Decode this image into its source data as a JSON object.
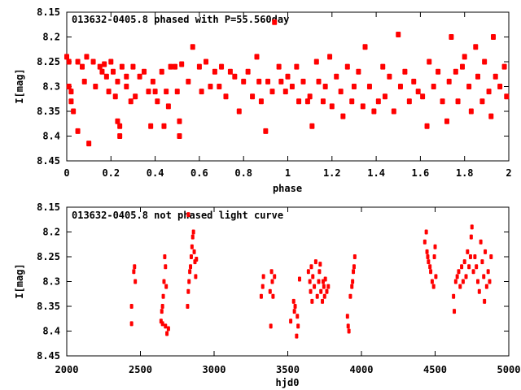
{
  "chart_data": [
    {
      "type": "scatter",
      "title": "013632-0405.8 phased with P=55.560day",
      "xlabel": "phase",
      "ylabel": "I[mag]",
      "xlim": [
        0,
        2
      ],
      "ylim": [
        8.45,
        8.15
      ],
      "y_inverted": true,
      "xticks": [
        "0",
        "0.2",
        "0.4",
        "0.6",
        "0.8",
        "1",
        "1.2",
        "1.4",
        "1.6",
        "1.8",
        "2"
      ],
      "yticks": [
        "8.15",
        "8.2",
        "8.25",
        "8.3",
        "8.35",
        "8.4",
        "8.45"
      ],
      "color": "#ff0000",
      "points": [
        [
          0.0,
          8.24
        ],
        [
          0.01,
          8.25
        ],
        [
          0.01,
          8.3
        ],
        [
          0.02,
          8.31
        ],
        [
          0.02,
          8.33
        ],
        [
          0.03,
          8.35
        ],
        [
          0.05,
          8.25
        ],
        [
          0.05,
          8.39
        ],
        [
          0.07,
          8.26
        ],
        [
          0.08,
          8.29
        ],
        [
          0.09,
          8.24
        ],
        [
          0.1,
          8.415
        ],
        [
          0.12,
          8.25
        ],
        [
          0.13,
          8.3
        ],
        [
          0.15,
          8.26
        ],
        [
          0.16,
          8.27
        ],
        [
          0.17,
          8.255
        ],
        [
          0.18,
          8.28
        ],
        [
          0.19,
          8.31
        ],
        [
          0.2,
          8.25
        ],
        [
          0.21,
          8.27
        ],
        [
          0.22,
          8.32
        ],
        [
          0.23,
          8.29
        ],
        [
          0.23,
          8.37
        ],
        [
          0.24,
          8.38
        ],
        [
          0.24,
          8.4
        ],
        [
          0.25,
          8.26
        ],
        [
          0.27,
          8.28
        ],
        [
          0.27,
          8.3
        ],
        [
          0.29,
          8.33
        ],
        [
          0.3,
          8.26
        ],
        [
          0.31,
          8.32
        ],
        [
          0.33,
          8.28
        ],
        [
          0.35,
          8.27
        ],
        [
          0.37,
          8.31
        ],
        [
          0.38,
          8.38
        ],
        [
          0.39,
          8.29
        ],
        [
          0.4,
          8.31
        ],
        [
          0.41,
          8.33
        ],
        [
          0.43,
          8.27
        ],
        [
          0.44,
          8.38
        ],
        [
          0.45,
          8.31
        ],
        [
          0.46,
          8.34
        ],
        [
          0.47,
          8.26
        ],
        [
          0.49,
          8.26
        ],
        [
          0.5,
          8.31
        ],
        [
          0.51,
          8.37
        ],
        [
          0.51,
          8.4
        ],
        [
          0.52,
          8.255
        ],
        [
          0.55,
          8.29
        ],
        [
          0.57,
          8.22
        ],
        [
          0.6,
          8.26
        ],
        [
          0.61,
          8.31
        ],
        [
          0.63,
          8.25
        ],
        [
          0.65,
          8.3
        ],
        [
          0.67,
          8.27
        ],
        [
          0.69,
          8.3
        ],
        [
          0.7,
          8.26
        ],
        [
          0.72,
          8.32
        ],
        [
          0.74,
          8.27
        ],
        [
          0.76,
          8.28
        ],
        [
          0.78,
          8.35
        ],
        [
          0.8,
          8.29
        ],
        [
          0.82,
          8.27
        ],
        [
          0.84,
          8.32
        ],
        [
          0.86,
          8.24
        ],
        [
          0.87,
          8.29
        ],
        [
          0.88,
          8.33
        ],
        [
          0.9,
          8.39
        ],
        [
          0.91,
          8.29
        ],
        [
          0.93,
          8.31
        ],
        [
          0.94,
          8.17
        ],
        [
          0.96,
          8.26
        ],
        [
          0.97,
          8.29
        ],
        [
          0.99,
          8.31
        ],
        [
          1.0,
          8.28
        ],
        [
          1.02,
          8.3
        ],
        [
          1.04,
          8.26
        ],
        [
          1.05,
          8.33
        ],
        [
          1.07,
          8.29
        ],
        [
          1.09,
          8.33
        ],
        [
          1.1,
          8.32
        ],
        [
          1.11,
          8.38
        ],
        [
          1.13,
          8.25
        ],
        [
          1.14,
          8.29
        ],
        [
          1.16,
          8.33
        ],
        [
          1.17,
          8.3
        ],
        [
          1.19,
          8.24
        ],
        [
          1.2,
          8.34
        ],
        [
          1.22,
          8.28
        ],
        [
          1.24,
          8.31
        ],
        [
          1.25,
          8.36
        ],
        [
          1.27,
          8.26
        ],
        [
          1.29,
          8.33
        ],
        [
          1.3,
          8.3
        ],
        [
          1.32,
          8.27
        ],
        [
          1.34,
          8.34
        ],
        [
          1.35,
          8.22
        ],
        [
          1.37,
          8.3
        ],
        [
          1.39,
          8.35
        ],
        [
          1.41,
          8.33
        ],
        [
          1.43,
          8.26
        ],
        [
          1.44,
          8.32
        ],
        [
          1.46,
          8.28
        ],
        [
          1.48,
          8.35
        ],
        [
          1.5,
          8.195
        ],
        [
          1.51,
          8.3
        ],
        [
          1.53,
          8.27
        ],
        [
          1.55,
          8.33
        ],
        [
          1.57,
          8.29
        ],
        [
          1.59,
          8.31
        ],
        [
          1.61,
          8.32
        ],
        [
          1.63,
          8.38
        ],
        [
          1.64,
          8.25
        ],
        [
          1.66,
          8.3
        ],
        [
          1.68,
          8.27
        ],
        [
          1.7,
          8.33
        ],
        [
          1.72,
          8.37
        ],
        [
          1.73,
          8.29
        ],
        [
          1.74,
          8.2
        ],
        [
          1.76,
          8.27
        ],
        [
          1.77,
          8.33
        ],
        [
          1.79,
          8.26
        ],
        [
          1.8,
          8.24
        ],
        [
          1.82,
          8.3
        ],
        [
          1.83,
          8.35
        ],
        [
          1.85,
          8.22
        ],
        [
          1.86,
          8.28
        ],
        [
          1.88,
          8.33
        ],
        [
          1.89,
          8.25
        ],
        [
          1.91,
          8.31
        ],
        [
          1.92,
          8.36
        ],
        [
          1.93,
          8.2
        ],
        [
          1.94,
          8.28
        ],
        [
          1.96,
          8.3
        ],
        [
          1.98,
          8.26
        ],
        [
          1.99,
          8.32
        ]
      ]
    },
    {
      "type": "scatter",
      "title": "013632-0405.8 not phased light curve",
      "xlabel": "hjd0",
      "ylabel": "I[mag]",
      "xlim": [
        2000,
        5000
      ],
      "ylim": [
        8.45,
        8.15
      ],
      "y_inverted": true,
      "xticks": [
        "2000",
        "2500",
        "3000",
        "3500",
        "4000",
        "4500",
        "5000"
      ],
      "yticks": [
        "8.15",
        "8.2",
        "8.25",
        "8.3",
        "8.35",
        "8.4",
        "8.45"
      ],
      "color": "#ff0000",
      "points": [
        [
          2440,
          8.385
        ],
        [
          2440,
          8.35
        ],
        [
          2455,
          8.28
        ],
        [
          2460,
          8.27
        ],
        [
          2465,
          8.3
        ],
        [
          2640,
          8.38
        ],
        [
          2645,
          8.36
        ],
        [
          2650,
          8.35
        ],
        [
          2655,
          8.33
        ],
        [
          2660,
          8.3
        ],
        [
          2665,
          8.25
        ],
        [
          2670,
          8.27
        ],
        [
          2650,
          8.385
        ],
        [
          2670,
          8.39
        ],
        [
          2680,
          8.405
        ],
        [
          2690,
          8.395
        ],
        [
          2675,
          8.31
        ],
        [
          2820,
          8.35
        ],
        [
          2825,
          8.32
        ],
        [
          2830,
          8.3
        ],
        [
          2835,
          8.28
        ],
        [
          2840,
          8.27
        ],
        [
          2845,
          8.25
        ],
        [
          2850,
          8.23
        ],
        [
          2855,
          8.21
        ],
        [
          2860,
          8.2
        ],
        [
          2865,
          8.24
        ],
        [
          2870,
          8.26
        ],
        [
          2875,
          8.29
        ],
        [
          2880,
          8.255
        ],
        [
          2825,
          8.165
        ],
        [
          3320,
          8.33
        ],
        [
          3330,
          8.31
        ],
        [
          3335,
          8.29
        ],
        [
          3380,
          8.32
        ],
        [
          3385,
          8.39
        ],
        [
          3390,
          8.28
        ],
        [
          3395,
          8.3
        ],
        [
          3400,
          8.33
        ],
        [
          3410,
          8.29
        ],
        [
          3520,
          8.38
        ],
        [
          3540,
          8.34
        ],
        [
          3545,
          8.36
        ],
        [
          3560,
          8.41
        ],
        [
          3565,
          8.37
        ],
        [
          3570,
          8.39
        ],
        [
          3550,
          8.35
        ],
        [
          3580,
          8.295
        ],
        [
          3640,
          8.28
        ],
        [
          3650,
          8.3
        ],
        [
          3655,
          8.32
        ],
        [
          3660,
          8.27
        ],
        [
          3665,
          8.34
        ],
        [
          3670,
          8.29
        ],
        [
          3680,
          8.31
        ],
        [
          3690,
          8.26
        ],
        [
          3700,
          8.33
        ],
        [
          3710,
          8.3
        ],
        [
          3715,
          8.28
        ],
        [
          3720,
          8.265
        ],
        [
          3725,
          8.32
        ],
        [
          3735,
          8.34
        ],
        [
          3740,
          8.3
        ],
        [
          3745,
          8.31
        ],
        [
          3750,
          8.33
        ],
        [
          3755,
          8.295
        ],
        [
          3765,
          8.32
        ],
        [
          3775,
          8.31
        ],
        [
          3905,
          8.37
        ],
        [
          3910,
          8.39
        ],
        [
          3915,
          8.4
        ],
        [
          3925,
          8.33
        ],
        [
          3935,
          8.31
        ],
        [
          3940,
          8.3
        ],
        [
          3945,
          8.28
        ],
        [
          3950,
          8.27
        ],
        [
          3955,
          8.25
        ],
        [
          4430,
          8.22
        ],
        [
          4440,
          8.2
        ],
        [
          4445,
          8.24
        ],
        [
          4450,
          8.25
        ],
        [
          4455,
          8.26
        ],
        [
          4465,
          8.27
        ],
        [
          4470,
          8.28
        ],
        [
          4480,
          8.3
        ],
        [
          4490,
          8.31
        ],
        [
          4495,
          8.25
        ],
        [
          4500,
          8.23
        ],
        [
          4505,
          8.29
        ],
        [
          4625,
          8.33
        ],
        [
          4630,
          8.36
        ],
        [
          4640,
          8.3
        ],
        [
          4650,
          8.29
        ],
        [
          4660,
          8.28
        ],
        [
          4670,
          8.31
        ],
        [
          4680,
          8.27
        ],
        [
          4690,
          8.3
        ],
        [
          4700,
          8.26
        ],
        [
          4710,
          8.29
        ],
        [
          4720,
          8.24
        ],
        [
          4730,
          8.27
        ],
        [
          4740,
          8.25
        ],
        [
          4745,
          8.21
        ],
        [
          4750,
          8.19
        ],
        [
          4760,
          8.28
        ],
        [
          4770,
          8.25
        ],
        [
          4780,
          8.27
        ],
        [
          4790,
          8.3
        ],
        [
          4800,
          8.32
        ],
        [
          4810,
          8.22
        ],
        [
          4820,
          8.26
        ],
        [
          4830,
          8.29
        ],
        [
          4835,
          8.34
        ],
        [
          4840,
          8.24
        ],
        [
          4850,
          8.31
        ],
        [
          4860,
          8.28
        ],
        [
          4870,
          8.3
        ],
        [
          4880,
          8.25
        ]
      ]
    }
  ]
}
